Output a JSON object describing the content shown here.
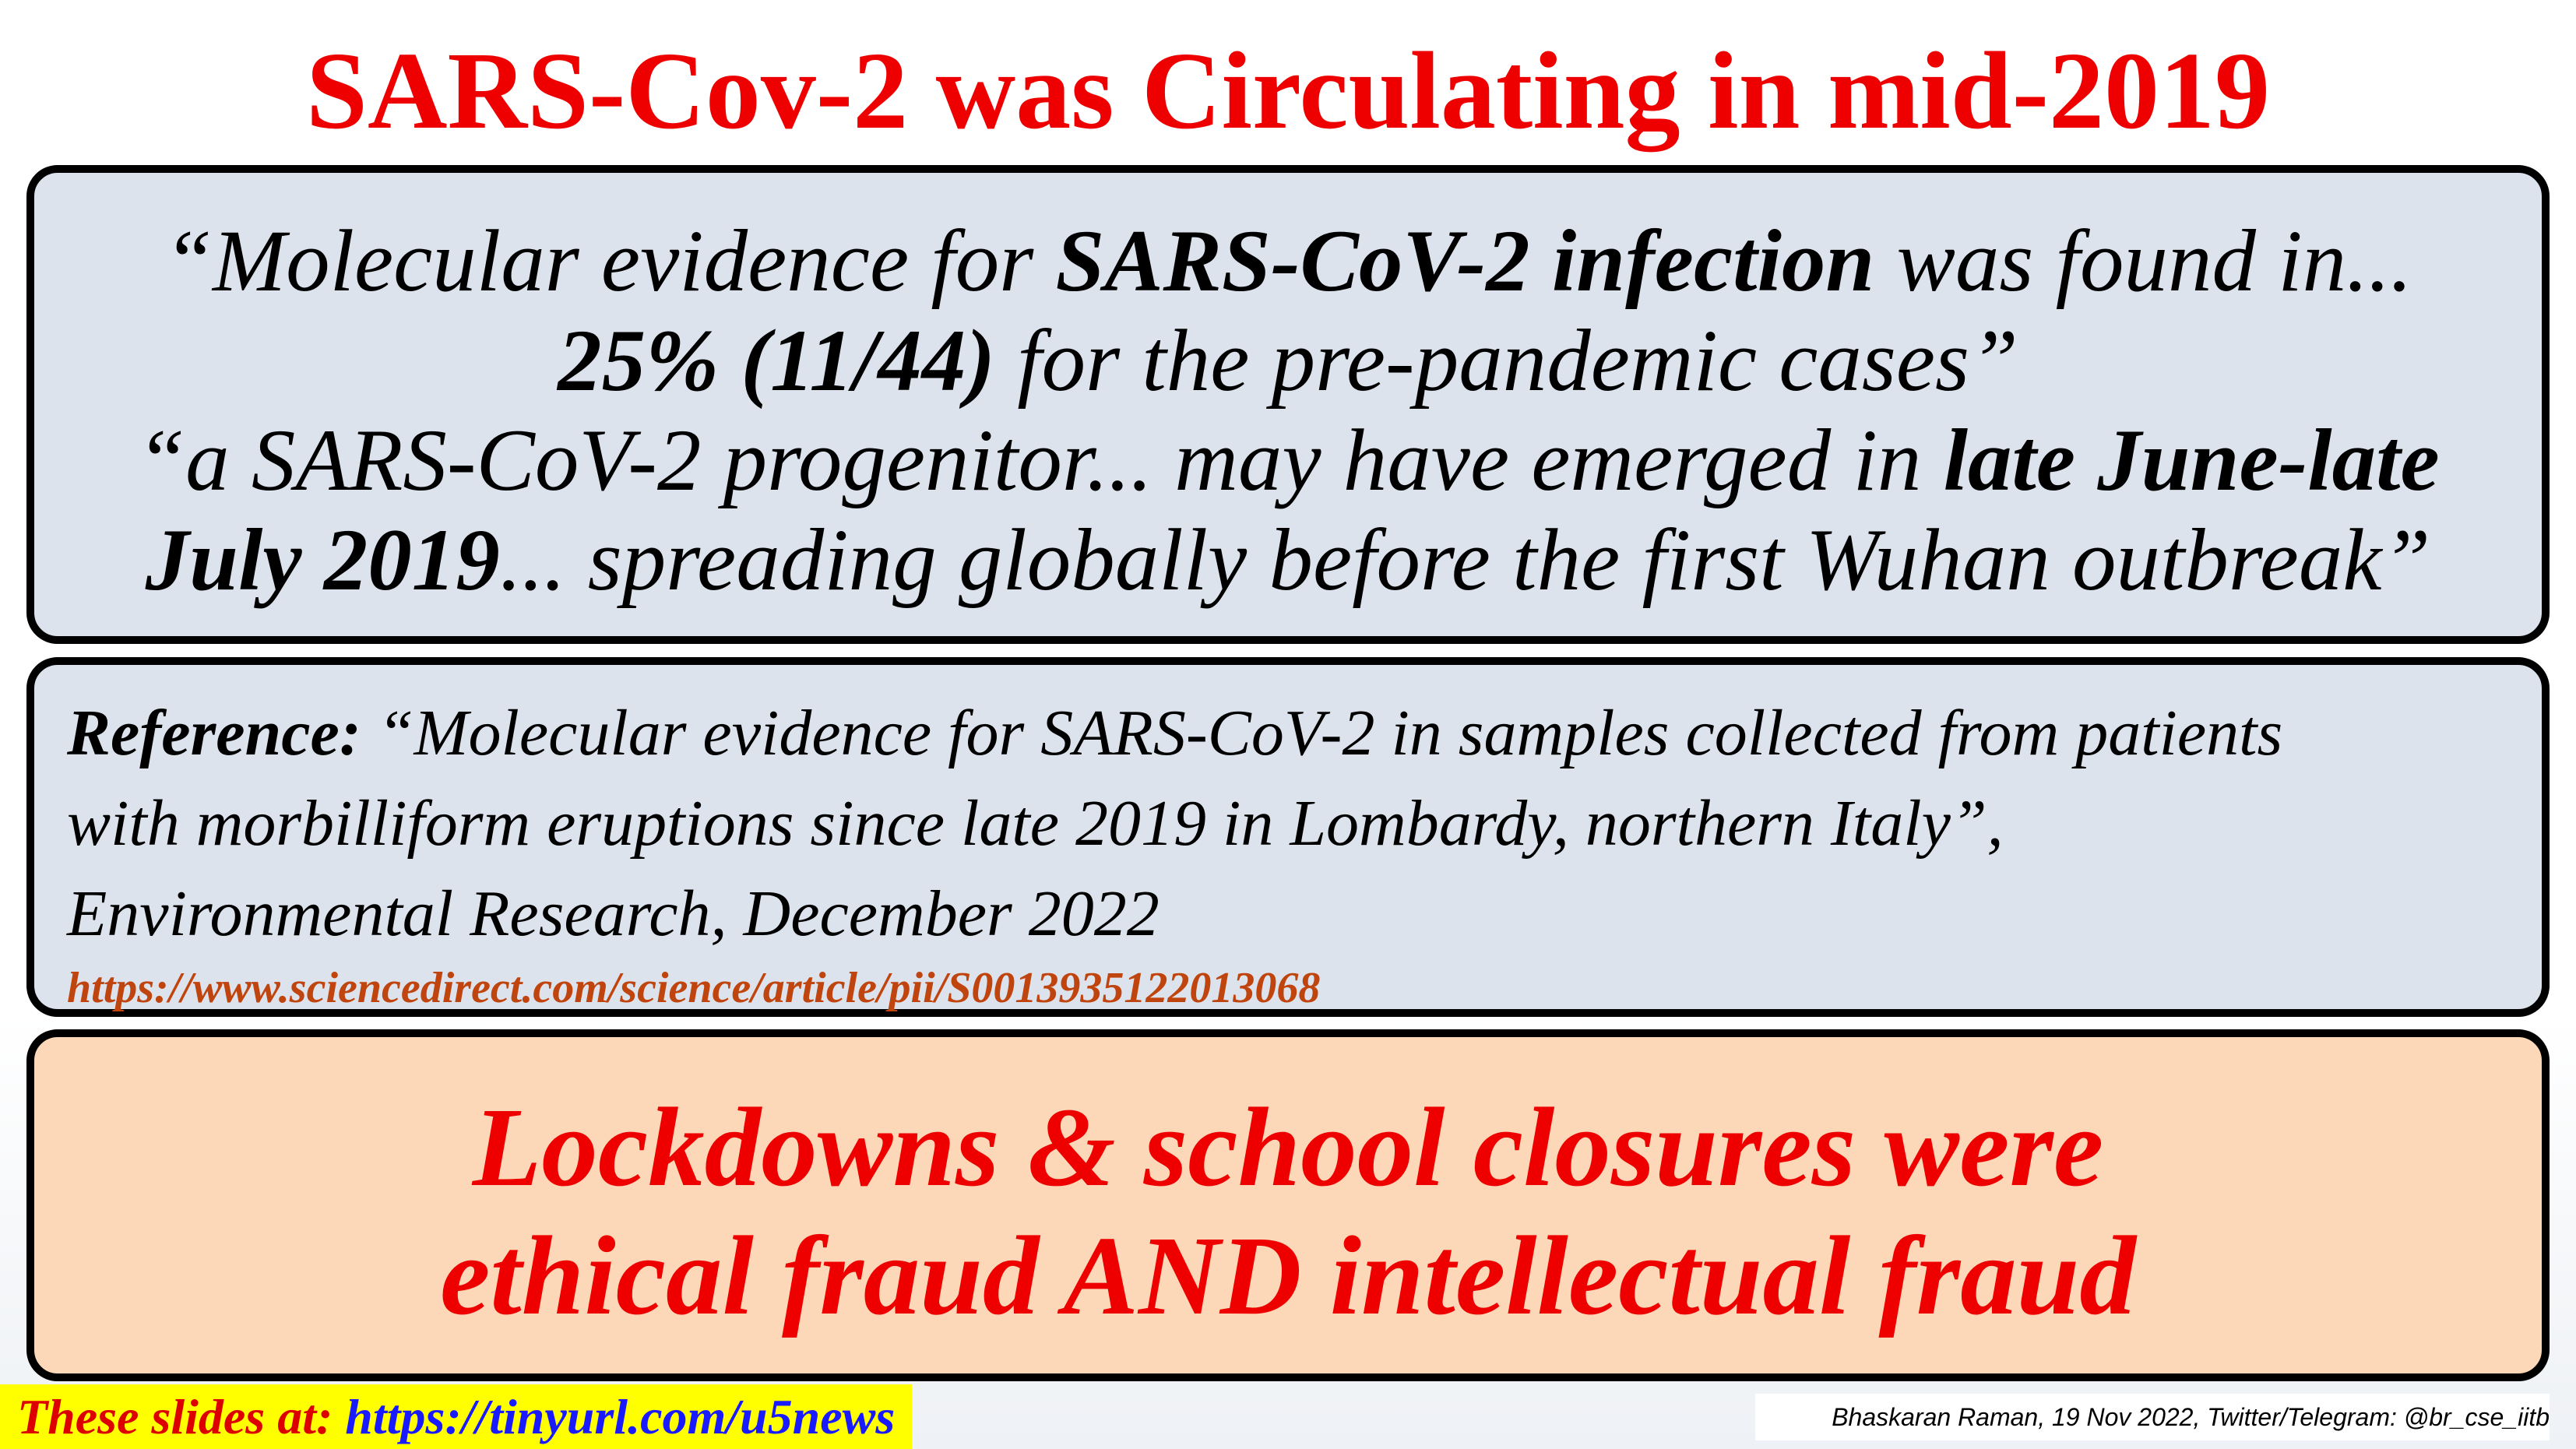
{
  "title": "SARS-Cov-2 was Circulating in mid-2019",
  "quote": {
    "line1_a": "“Molecular evidence for ",
    "line1_b": "SARS-CoV-2 infection",
    "line1_c": " was found in...",
    "line2_a": "25% (11/44)",
    "line2_b": " for the pre-pandemic cases”",
    "line3_a": "“a SARS-CoV-2 progenitor... may have emerged in ",
    "line3_b": "late June-late",
    "line4_a": "July 2019",
    "line4_b": "... spreading globally before the first Wuhan outbreak”"
  },
  "reference": {
    "label": "Reference:",
    "line1": " “Molecular evidence for SARS-CoV-2 in samples collected from patients",
    "line2": "with morbilliform eruptions since late 2019 in Lombardy, northern Italy”,",
    "line3": "Environmental Research, December 2022",
    "url": "https://www.sciencedirect.com/science/article/pii/S0013935122013068"
  },
  "conclusion": {
    "line1": "Lockdowns & school closures were",
    "line2": "ethical fraud AND intellectual fraud"
  },
  "footer": {
    "slides_label": "These slides at: ",
    "slides_url": "https://tinyurl.com/u5news",
    "credit": "Bhaskaran Raman, 19 Nov 2022, Twitter/Telegram: @br_cse_iitb"
  }
}
